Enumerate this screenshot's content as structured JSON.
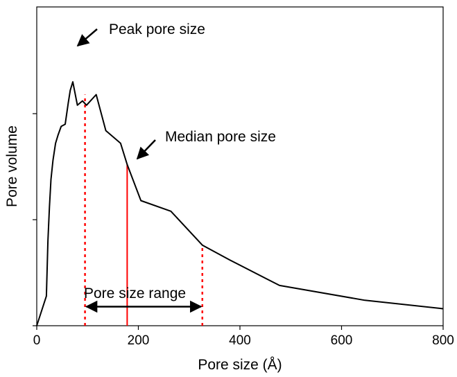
{
  "chart_data": {
    "type": "line",
    "title": "",
    "xlabel": "Pore size (Å)",
    "ylabel": "Pore volume",
    "xlim": [
      0,
      800
    ],
    "ylim": [
      0,
      1
    ],
    "x_ticks": [
      0,
      200,
      400,
      600,
      800
    ],
    "x_tick_labels": [
      "0",
      "200",
      "400",
      "600",
      "800"
    ],
    "y_ticks": [
      0,
      0.5,
      1
    ],
    "y_tick_labels": [
      "",
      "",
      ""
    ],
    "grid": false,
    "legend": "none",
    "series": [
      {
        "color": "#000000",
        "x": [
          0,
          19,
          22,
          25,
          28,
          32,
          37,
          42,
          48,
          56,
          62,
          66,
          71,
          80,
          90,
          98,
          117,
          136,
          165,
          178,
          205,
          264,
          326,
          380,
          478,
          646,
          800
        ],
        "y": [
          0,
          0.14,
          0.4,
          0.56,
          0.69,
          0.78,
          0.86,
          0.9,
          0.94,
          0.95,
          1.05,
          1.11,
          1.15,
          1.04,
          1.06,
          1.04,
          1.09,
          0.92,
          0.86,
          0.76,
          0.59,
          0.54,
          0.38,
          0.31,
          0.19,
          0.12,
          0.08
        ]
      }
    ],
    "markers": [
      {
        "type": "dotted",
        "color": "#ff0000",
        "x": 95,
        "y_top": 1.09
      },
      {
        "type": "solid",
        "color": "#ff0000",
        "x": 178,
        "y_top": 0.76
      },
      {
        "type": "dotted",
        "color": "#ff0000",
        "x": 326,
        "y_top": 0.38
      }
    ],
    "annotations": {
      "peak": {
        "text": "Peak pore size",
        "x": 71,
        "y": 1.15
      },
      "median": {
        "text": "Median pore size",
        "x": 195,
        "y": 0.74
      },
      "range": {
        "text": "Pore size range",
        "x1": 95,
        "x2": 326,
        "y": 0.09
      }
    }
  }
}
